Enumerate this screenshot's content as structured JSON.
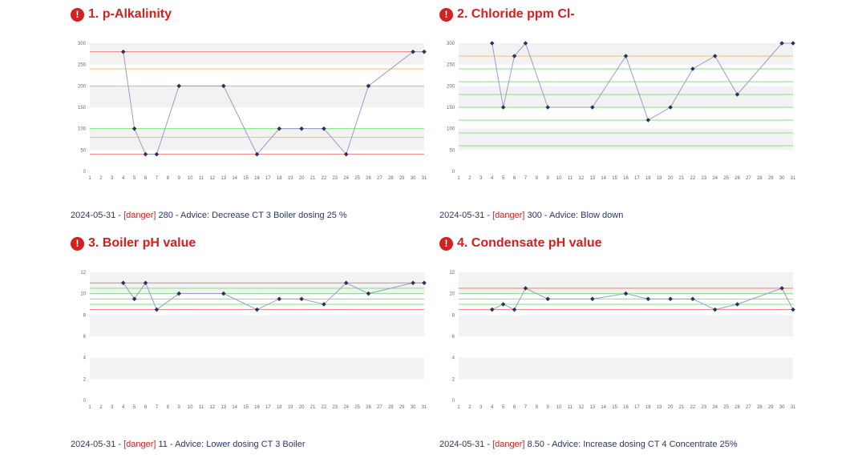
{
  "colors": {
    "red": "#f07f7f",
    "orange": "#ffc04d",
    "green": "#7fe57f",
    "series": "#9a9ac8",
    "marker": "#2b3358",
    "band": "#f2f2f2",
    "title": "#d42020",
    "advice": "#2b3568"
  },
  "icon": "exclamation-circle-icon",
  "panels": [
    {
      "title": "1. p-Alkalinity",
      "advice": {
        "date": "2024-05-31",
        "sep1": " - ",
        "tag": "[danger]",
        "text": " 280 - Advice: Decrease CT 3 Boiler dosing 25 %"
      }
    },
    {
      "title": "2. Chloride ppm Cl-",
      "advice": {
        "date": "2024-05-31",
        "sep1": " - ",
        "tag": "[danger]",
        "text": " 300 - Advice: Blow down"
      }
    },
    {
      "title": "3. Boiler pH value",
      "advice": {
        "date": "2024-05-31",
        "sep1": " - ",
        "tag": "[danger]",
        "text": " 11 - Advice: Lower dosing CT 3 Boiler"
      }
    },
    {
      "title": "4. Condensate pH value",
      "advice": {
        "date": "2024-05-31",
        "sep1": " - ",
        "tag": "[danger]",
        "text": " 8.50 - Advice: Increase dosing CT 4 Concentrate 25%"
      }
    }
  ],
  "chart_data": [
    {
      "type": "line",
      "x_ticks": [
        "1",
        "2",
        "3",
        "4",
        "5",
        "6",
        "7",
        "8",
        "9",
        "10",
        "11",
        "12",
        "13",
        "14",
        "15",
        "16",
        "17",
        "18",
        "19",
        "20",
        "21",
        "22",
        "23",
        "24",
        "25",
        "26",
        "27",
        "28",
        "29",
        "30",
        "31"
      ],
      "y_ticks": [
        "0",
        "50",
        "100",
        "150",
        "200",
        "250",
        "300"
      ],
      "ylim": [
        0,
        300
      ],
      "grid": "alternating horizontal bands",
      "x": [
        4,
        5,
        6,
        7,
        9,
        13,
        16,
        18,
        20,
        22,
        24,
        26,
        30,
        31
      ],
      "y": [
        280,
        100,
        40,
        40,
        200,
        200,
        40,
        100,
        100,
        100,
        40,
        200,
        280,
        280
      ],
      "reference_lines": [
        {
          "value": 280,
          "color": "red"
        },
        {
          "value": 240,
          "color": "orange"
        },
        {
          "value": 200,
          "color": "green"
        },
        {
          "value": 100,
          "color": "green"
        },
        {
          "value": 80,
          "color": "orange"
        },
        {
          "value": 40,
          "color": "red"
        }
      ]
    },
    {
      "type": "line",
      "x_ticks": [
        "1",
        "2",
        "3",
        "4",
        "5",
        "6",
        "7",
        "8",
        "9",
        "10",
        "11",
        "12",
        "13",
        "14",
        "15",
        "16",
        "17",
        "18",
        "19",
        "20",
        "21",
        "22",
        "23",
        "24",
        "25",
        "26",
        "27",
        "28",
        "29",
        "30",
        "31"
      ],
      "y_ticks": [
        "0",
        "50",
        "100",
        "150",
        "200",
        "250",
        "300"
      ],
      "ylim": [
        0,
        300
      ],
      "grid": "alternating horizontal bands",
      "x": [
        4,
        5,
        6,
        7,
        9,
        13,
        16,
        18,
        20,
        22,
        24,
        26,
        30,
        31
      ],
      "y": [
        300,
        150,
        270,
        300,
        150,
        150,
        270,
        120,
        150,
        240,
        270,
        180,
        300,
        300
      ],
      "reference_lines": [
        {
          "value": 270,
          "color": "orange"
        },
        {
          "value": 240,
          "color": "green"
        },
        {
          "value": 210,
          "color": "green"
        },
        {
          "value": 180,
          "color": "green"
        },
        {
          "value": 150,
          "color": "green"
        },
        {
          "value": 120,
          "color": "green"
        },
        {
          "value": 90,
          "color": "green"
        },
        {
          "value": 60,
          "color": "green"
        }
      ]
    },
    {
      "type": "line",
      "x_ticks": [
        "1",
        "2",
        "3",
        "4",
        "5",
        "6",
        "7",
        "8",
        "9",
        "10",
        "11",
        "12",
        "13",
        "14",
        "15",
        "16",
        "17",
        "18",
        "19",
        "20",
        "21",
        "22",
        "23",
        "24",
        "25",
        "26",
        "27",
        "28",
        "29",
        "30",
        "31"
      ],
      "y_ticks": [
        "0",
        "2",
        "4",
        "6",
        "8",
        "10",
        "12"
      ],
      "ylim": [
        0,
        12
      ],
      "grid": "alternating horizontal bands",
      "x": [
        4,
        5,
        6,
        7,
        9,
        13,
        16,
        18,
        20,
        22,
        24,
        26,
        30,
        31
      ],
      "y": [
        11,
        9.5,
        11,
        8.5,
        10,
        10,
        8.5,
        9.5,
        9.5,
        9,
        11,
        10,
        11,
        11
      ],
      "reference_lines": [
        {
          "value": 11,
          "color": "red"
        },
        {
          "value": 10.5,
          "color": "green"
        },
        {
          "value": 10,
          "color": "green"
        },
        {
          "value": 9.5,
          "color": "green"
        },
        {
          "value": 9,
          "color": "green"
        },
        {
          "value": 8.5,
          "color": "red"
        }
      ]
    },
    {
      "type": "line",
      "x_ticks": [
        "1",
        "2",
        "3",
        "4",
        "5",
        "6",
        "7",
        "8",
        "9",
        "10",
        "11",
        "12",
        "13",
        "14",
        "15",
        "16",
        "17",
        "18",
        "19",
        "20",
        "21",
        "22",
        "23",
        "24",
        "25",
        "26",
        "27",
        "28",
        "29",
        "30",
        "31"
      ],
      "y_ticks": [
        "0",
        "2",
        "4",
        "6",
        "8",
        "10",
        "12"
      ],
      "ylim": [
        0,
        12
      ],
      "grid": "alternating horizontal bands",
      "x": [
        4,
        5,
        6,
        7,
        9,
        13,
        16,
        18,
        20,
        22,
        24,
        26,
        30,
        31
      ],
      "y": [
        8.5,
        9,
        8.5,
        10.5,
        9.5,
        9.5,
        10,
        9.5,
        9.5,
        9.5,
        8.5,
        9,
        10.5,
        8.5
      ],
      "reference_lines": [
        {
          "value": 10.5,
          "color": "red"
        },
        {
          "value": 10,
          "color": "green"
        },
        {
          "value": 9.5,
          "color": "green"
        },
        {
          "value": 9,
          "color": "green"
        },
        {
          "value": 8.5,
          "color": "red"
        }
      ]
    }
  ]
}
